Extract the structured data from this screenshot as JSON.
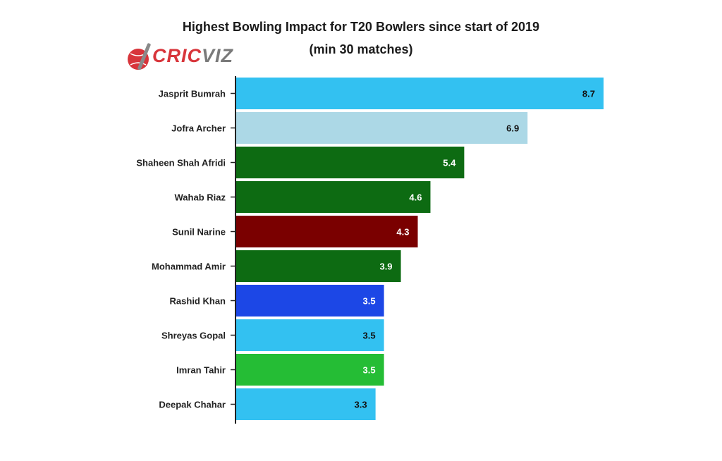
{
  "chart_data": {
    "type": "bar",
    "orientation": "horizontal",
    "title": "Highest Bowling Impact for T20 Bowlers since start of 2019",
    "subtitle": "(min 30 matches)",
    "xlabel": "",
    "ylabel": "",
    "xlim": [
      0,
      8.7
    ],
    "grid": false,
    "legend": "none",
    "categories": [
      "Jasprit Bumrah",
      "Jofra Archer",
      "Shaheen Shah Afridi",
      "Wahab Riaz",
      "Sunil Narine",
      "Mohammad Amir",
      "Rashid Khan",
      "Shreyas Gopal",
      "Imran Tahir",
      "Deepak Chahar"
    ],
    "values": [
      8.7,
      6.9,
      5.4,
      4.6,
      4.3,
      3.9,
      3.5,
      3.5,
      3.5,
      3.3
    ],
    "value_labels": [
      "8.7",
      "6.9",
      "5.4",
      "4.6",
      "4.3",
      "3.9",
      "3.5",
      "3.5",
      "3.5",
      "3.3"
    ],
    "bar_colors": [
      "#33c1f1",
      "#acd8e6",
      "#0d6b12",
      "#0d6b12",
      "#7a0000",
      "#0d6b12",
      "#1c47e6",
      "#33c1f1",
      "#25bd35",
      "#33c1f1"
    ],
    "label_colors": [
      "#111111",
      "#111111",
      "#ffffff",
      "#ffffff",
      "#ffffff",
      "#ffffff",
      "#ffffff",
      "#111111",
      "#ffffff",
      "#111111"
    ]
  },
  "logo": {
    "text_a": "CRIC",
    "text_b": "VIZ",
    "icon": "cricket-ball-bat-icon",
    "color_a": "#d8353b",
    "color_b": "#7a7a7a"
  }
}
